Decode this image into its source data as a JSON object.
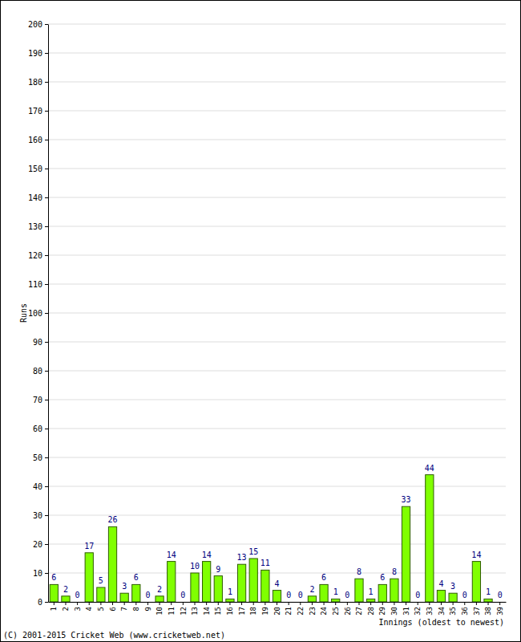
{
  "chart_data": {
    "type": "bar",
    "categories": [
      "1",
      "2",
      "3",
      "4",
      "5",
      "6",
      "7",
      "8",
      "9",
      "10",
      "11",
      "12",
      "13",
      "14",
      "15",
      "16",
      "17",
      "18",
      "19",
      "20",
      "21",
      "22",
      "23",
      "24",
      "25",
      "26",
      "27",
      "28",
      "29",
      "30",
      "31",
      "32",
      "33",
      "34",
      "35",
      "36",
      "37",
      "38",
      "39"
    ],
    "values": [
      6,
      2,
      0,
      17,
      5,
      26,
      3,
      6,
      0,
      2,
      14,
      0,
      10,
      14,
      9,
      1,
      13,
      15,
      11,
      4,
      0,
      0,
      2,
      6,
      1,
      0,
      8,
      1,
      6,
      8,
      33,
      0,
      44,
      4,
      3,
      0,
      14,
      1,
      0
    ],
    "color": "#80ff00",
    "ylim": [
      0,
      200
    ],
    "yticks": [
      0,
      10,
      20,
      30,
      40,
      50,
      60,
      70,
      80,
      90,
      100,
      110,
      120,
      130,
      140,
      150,
      160,
      170,
      180,
      190,
      200
    ],
    "xlabel": "Innings (oldest to newest)",
    "ylabel": "Runs",
    "annotations": [
      "(C) 2001-2015 Cricket Web (www.cricketweb.net)"
    ],
    "grid": true,
    "data_labels": true
  }
}
